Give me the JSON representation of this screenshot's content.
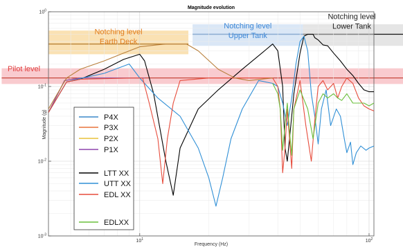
{
  "chart_data": {
    "type": "line",
    "title": "Magnitude evolution",
    "xlabel": "Frequency (Hz)",
    "ylabel": "Magnitude (g)",
    "x_scale": "log",
    "y_scale": "log",
    "xlim": [
      4,
      105
    ],
    "ylim": [
      0.001,
      1
    ],
    "x_ticks": [
      {
        "v": 10,
        "label": "10^1"
      },
      {
        "v": 100,
        "label": "10^2"
      }
    ],
    "y_ticks": [
      {
        "v": 1,
        "label": "10^0"
      },
      {
        "v": 0.1,
        "label": "10^-1"
      },
      {
        "v": 0.01,
        "label": "10^-2"
      },
      {
        "v": 0.001,
        "label": "10^-3"
      }
    ],
    "bands": [
      {
        "name": "pilot",
        "label": [
          "Pilot level"
        ],
        "x0": 2.5,
        "x1": 160,
        "y0": 0.108,
        "y1": 0.175,
        "level": 0.13,
        "color": "#f4a0a8",
        "text_color": "#e03c3c",
        "line_color": "#c0392b"
      },
      {
        "name": "earth-deck",
        "label": [
          "Notching level",
          "Earth Deck"
        ],
        "x0": 4.0,
        "x1": 16.3,
        "y0": 0.27,
        "y1": 0.56,
        "level": 0.37,
        "color": "#f5c874",
        "text_color": "#e07b1a",
        "line_color": "#b27a2a"
      },
      {
        "name": "upper-tank",
        "label": [
          "Notching level",
          "Upper Tank"
        ],
        "x0": 17.0,
        "x1": 51.5,
        "y0": 0.35,
        "y1": 0.68,
        "level": 0.5,
        "color": "#bcd4ee",
        "text_color": "#3b86d6",
        "line_color": "#2f6db5"
      },
      {
        "name": "lower-tank",
        "label": [
          "Notching level",
          "Lower Tank"
        ],
        "x0": 51.5,
        "x1": 160,
        "y0": 0.35,
        "y1": 0.68,
        "level": 0.5,
        "color": "#cfcfcf",
        "text_color": "#222222",
        "line_color": "#111111"
      }
    ],
    "legend": {
      "position": "left",
      "entries": [
        "P4X",
        "P3X",
        "P2X",
        "P1X",
        "",
        "LTT XX",
        "UTT XX",
        "EDL XX",
        "",
        "EDLXX"
      ]
    },
    "series": [
      {
        "name": "P4X",
        "color": "#3a87c9",
        "points": [
          [
            4,
            0.045
          ],
          [
            4.7,
            0.12
          ],
          [
            5.5,
            0.13
          ],
          [
            9.5,
            0.13
          ],
          [
            10.5,
            0.13
          ]
        ]
      },
      {
        "name": "P3X",
        "color": "#e8743b",
        "points": [
          [
            4,
            0.045
          ],
          [
            4.7,
            0.12
          ],
          [
            5.5,
            0.13
          ],
          [
            9.5,
            0.13
          ],
          [
            10.5,
            0.13
          ]
        ]
      },
      {
        "name": "P2X",
        "color": "#e8c23a",
        "points": [
          [
            4,
            0.045
          ],
          [
            4.7,
            0.12
          ],
          [
            5.5,
            0.13
          ],
          [
            9.5,
            0.13
          ],
          [
            10.5,
            0.13
          ]
        ]
      },
      {
        "name": "P1X",
        "color": "#8e44ad",
        "points": [
          [
            4,
            0.045
          ],
          [
            4.7,
            0.12
          ],
          [
            5.5,
            0.13
          ],
          [
            9.5,
            0.13
          ],
          [
            10.5,
            0.13
          ]
        ]
      },
      {
        "name": "LTT XX",
        "color": "#000000",
        "points": [
          [
            4,
            0.045
          ],
          [
            4.8,
            0.115
          ],
          [
            5.5,
            0.125
          ],
          [
            7,
            0.17
          ],
          [
            8.5,
            0.23
          ],
          [
            10,
            0.27
          ],
          [
            10.5,
            0.22
          ],
          [
            11.5,
            0.08
          ],
          [
            13,
            0.01
          ],
          [
            14,
            0.0035
          ],
          [
            15,
            0.015
          ],
          [
            18,
            0.05
          ],
          [
            22,
            0.09
          ],
          [
            28,
            0.17
          ],
          [
            35,
            0.3
          ],
          [
            38,
            0.37
          ],
          [
            40,
            0.3
          ],
          [
            42,
            0.1
          ],
          [
            43,
            0.015
          ],
          [
            44,
            0.01
          ],
          [
            45,
            0.02
          ],
          [
            47,
            0.08
          ],
          [
            50,
            0.28
          ],
          [
            52,
            0.47
          ],
          [
            54,
            0.5
          ],
          [
            57,
            0.5
          ],
          [
            58,
            0.45
          ],
          [
            60,
            0.42
          ],
          [
            63,
            0.36
          ],
          [
            66,
            0.35
          ],
          [
            70,
            0.28
          ],
          [
            75,
            0.22
          ],
          [
            80,
            0.17
          ],
          [
            85,
            0.14
          ],
          [
            90,
            0.11
          ],
          [
            95,
            0.09
          ],
          [
            100,
            0.085
          ],
          [
            105,
            0.085
          ]
        ]
      },
      {
        "name": "UTT XX",
        "color": "#2f8fd6",
        "points": [
          [
            4,
            0.045
          ],
          [
            4.8,
            0.115
          ],
          [
            5.5,
            0.128
          ],
          [
            7,
            0.15
          ],
          [
            9,
            0.2
          ],
          [
            10,
            0.13
          ],
          [
            12,
            0.07
          ],
          [
            15,
            0.04
          ],
          [
            18,
            0.015
          ],
          [
            20,
            0.006
          ],
          [
            21.5,
            0.0025
          ],
          [
            23,
            0.006
          ],
          [
            25,
            0.02
          ],
          [
            28,
            0.05
          ],
          [
            33,
            0.12
          ],
          [
            38,
            0.11
          ],
          [
            40,
            0.1
          ],
          [
            42,
            0.06
          ],
          [
            44,
            0.03
          ],
          [
            46,
            0.07
          ],
          [
            48,
            0.2
          ],
          [
            50,
            0.4
          ],
          [
            52,
            0.47
          ],
          [
            54,
            0.3
          ],
          [
            56,
            0.08
          ],
          [
            58,
            0.04
          ],
          [
            60,
            0.017
          ],
          [
            62,
            0.05
          ],
          [
            65,
            0.09
          ],
          [
            68,
            0.03
          ],
          [
            72,
            0.05
          ],
          [
            75,
            0.04
          ],
          [
            78,
            0.02
          ],
          [
            80,
            0.013
          ],
          [
            83,
            0.018
          ],
          [
            85,
            0.009
          ],
          [
            88,
            0.013
          ],
          [
            92,
            0.016
          ],
          [
            97,
            0.014
          ],
          [
            100,
            0.015
          ],
          [
            105,
            0.016
          ]
        ]
      },
      {
        "name": "EDL XX",
        "color": "#e74c3c",
        "points": [
          [
            4,
            0.045
          ],
          [
            4.8,
            0.115
          ],
          [
            5.5,
            0.125
          ],
          [
            9.5,
            0.13
          ],
          [
            10.3,
            0.13
          ],
          [
            11,
            0.06
          ],
          [
            12,
            0.02
          ],
          [
            12.6,
            0.005
          ],
          [
            13.2,
            0.02
          ],
          [
            14,
            0.06
          ],
          [
            15,
            0.12
          ],
          [
            20,
            0.13
          ],
          [
            30,
            0.13
          ],
          [
            38,
            0.13
          ],
          [
            40,
            0.1
          ],
          [
            41,
            0.05
          ],
          [
            42,
            0.007
          ],
          [
            43,
            0.015
          ],
          [
            44,
            0.05
          ],
          [
            45,
            0.02
          ],
          [
            46,
            0.008
          ],
          [
            47,
            0.05
          ],
          [
            50,
            0.12
          ],
          [
            53,
            0.03
          ],
          [
            56,
            0.01
          ],
          [
            58,
            0.035
          ],
          [
            60,
            0.1
          ],
          [
            63,
            0.12
          ],
          [
            66,
            0.09
          ],
          [
            70,
            0.11
          ],
          [
            73,
            0.07
          ],
          [
            76,
            0.1
          ],
          [
            80,
            0.13
          ],
          [
            85,
            0.11
          ],
          [
            90,
            0.07
          ],
          [
            95,
            0.055
          ],
          [
            100,
            0.05
          ],
          [
            105,
            0.047
          ]
        ]
      },
      {
        "name": "EDLXX",
        "color": "#6abf3b",
        "points": [
          [
            38,
            0.11
          ],
          [
            40,
            0.08
          ],
          [
            41,
            0.05
          ],
          [
            42,
            0.014
          ],
          [
            43,
            0.03
          ],
          [
            44,
            0.06
          ],
          [
            45,
            0.025
          ],
          [
            46,
            0.012
          ],
          [
            47,
            0.05
          ],
          [
            50,
            0.09
          ],
          [
            54,
            0.05
          ],
          [
            57,
            0.02
          ],
          [
            60,
            0.06
          ],
          [
            63,
            0.08
          ],
          [
            66,
            0.07
          ],
          [
            70,
            0.08
          ],
          [
            73,
            0.07
          ],
          [
            76,
            0.065
          ],
          [
            80,
            0.08
          ],
          [
            85,
            0.06
          ],
          [
            90,
            0.06
          ],
          [
            95,
            0.06
          ],
          [
            100,
            0.055
          ],
          [
            105,
            0.06
          ]
        ]
      },
      {
        "name": "",
        "color": "#b87f3a",
        "points": [
          [
            4,
            0.05
          ],
          [
            4.8,
            0.13
          ],
          [
            5.5,
            0.17
          ],
          [
            7,
            0.22
          ],
          [
            8.5,
            0.28
          ],
          [
            10,
            0.34
          ],
          [
            13,
            0.37
          ],
          [
            16,
            0.37
          ],
          [
            18,
            0.3
          ],
          [
            22,
            0.17
          ],
          [
            26,
            0.13
          ],
          [
            30,
            0.12
          ],
          [
            38,
            0.13
          ]
        ]
      }
    ]
  }
}
